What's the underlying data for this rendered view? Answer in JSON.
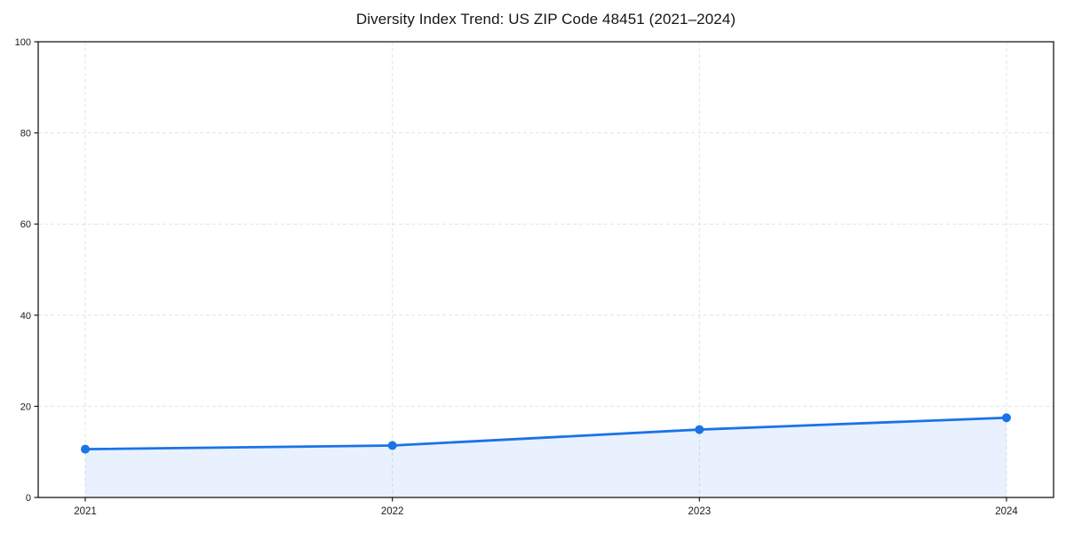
{
  "chart_data": {
    "type": "line",
    "title": "Diversity Index Trend: US ZIP Code 48451 (2021–2024)",
    "x": [
      "2021",
      "2022",
      "2023",
      "2024"
    ],
    "series": [
      {
        "name": "Diversity Index",
        "values": [
          10.6,
          11.4,
          14.9,
          17.5
        ]
      }
    ],
    "xlabel": "",
    "ylabel": "",
    "ylim": [
      0,
      100
    ],
    "yticks": [
      0,
      20,
      40,
      60,
      80,
      100
    ],
    "grid": true,
    "grid_style": "dashed",
    "legend": "none",
    "area_fill": true,
    "marker": "circle",
    "colors": {
      "line": "#1a73e8",
      "marker": "#1a73e8",
      "fill": "rgba(26,115,232,0.10)",
      "grid": "#e3e3e3",
      "spine": "#1a1a1a",
      "tick_label": "#1a1a1a"
    }
  }
}
